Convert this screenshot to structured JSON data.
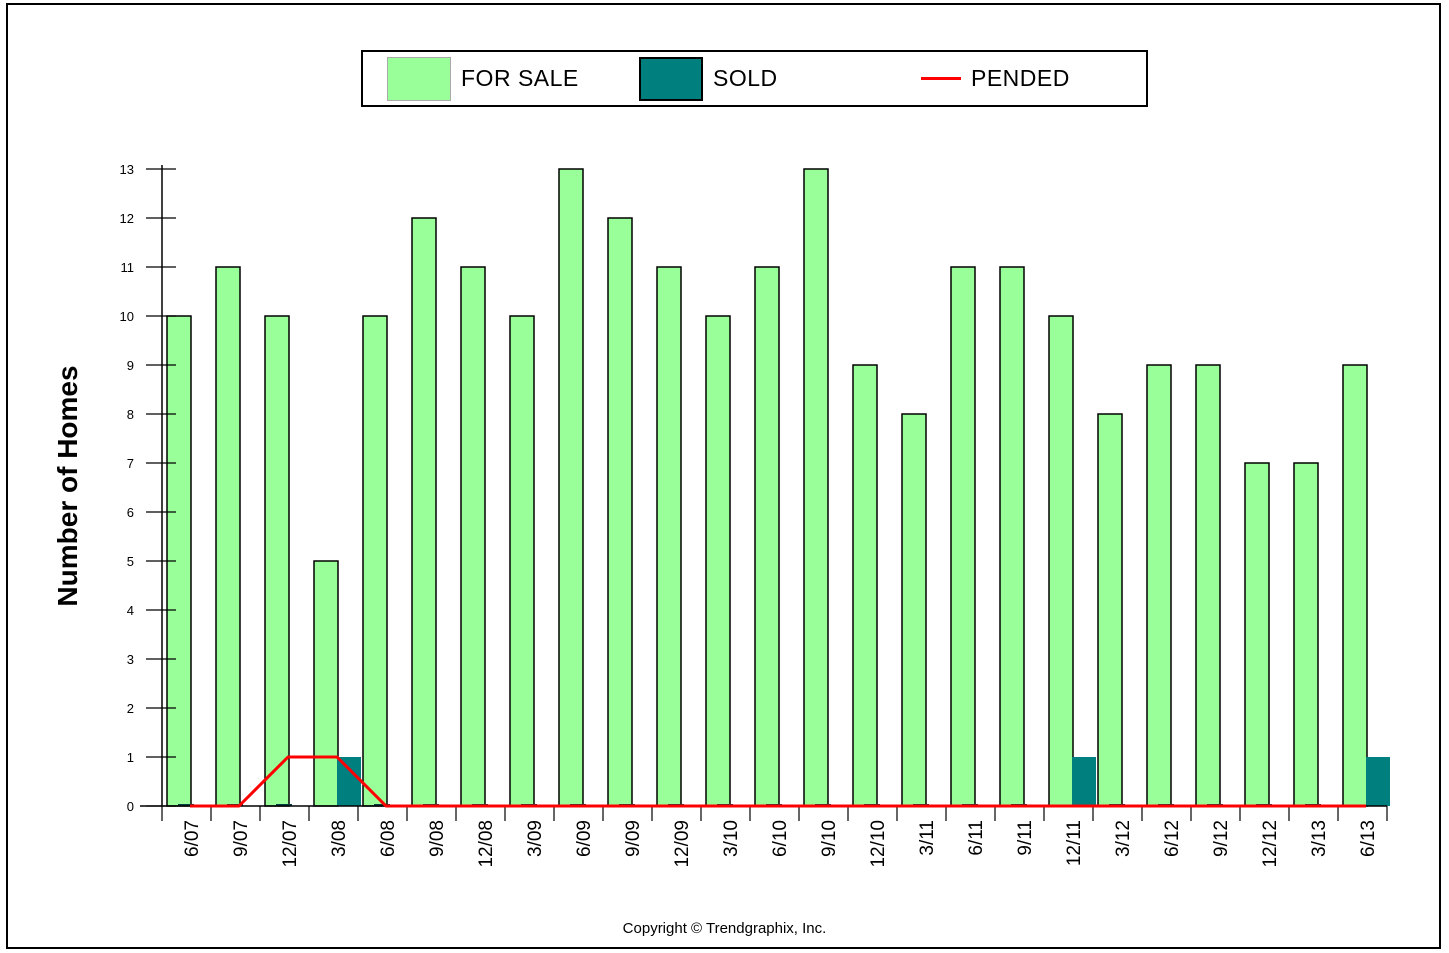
{
  "legend": {
    "for_sale_label": "FOR SALE",
    "sold_label": "SOLD",
    "pended_label": "PENDED"
  },
  "copyright": "Copyright © Trendgraphix, Inc.",
  "colors": {
    "for_sale": "#99ff99",
    "sold": "#007f7f",
    "pended": "#ff0000"
  },
  "chart_data": {
    "type": "bar",
    "ylabel": "Number of Homes",
    "xlabel": "",
    "ylim": [
      0,
      13
    ],
    "yticks": [
      0,
      1,
      2,
      3,
      4,
      5,
      6,
      7,
      8,
      9,
      10,
      11,
      12,
      13
    ],
    "categories": [
      "6/07",
      "9/07",
      "12/07",
      "3/08",
      "6/08",
      "9/08",
      "12/08",
      "3/09",
      "6/09",
      "9/09",
      "12/09",
      "3/10",
      "6/10",
      "9/10",
      "12/10",
      "3/11",
      "6/11",
      "9/11",
      "12/11",
      "3/12",
      "6/12",
      "9/12",
      "12/12",
      "3/13",
      "6/13"
    ],
    "series": [
      {
        "name": "FOR SALE",
        "type": "bar",
        "values": [
          10,
          11,
          10,
          5,
          10,
          12,
          11,
          10,
          13,
          12,
          11,
          10,
          11,
          13,
          9,
          8,
          11,
          11,
          10,
          8,
          9,
          9,
          7,
          7,
          9
        ]
      },
      {
        "name": "SOLD",
        "type": "bar",
        "values": [
          0,
          0,
          0,
          1,
          0,
          0,
          0,
          0,
          0,
          0,
          0,
          0,
          0,
          0,
          0,
          0,
          0,
          0,
          1,
          0,
          0,
          0,
          0,
          0,
          1
        ]
      },
      {
        "name": "PENDED",
        "type": "line",
        "values": [
          0,
          0,
          1,
          1,
          0,
          0,
          0,
          0,
          0,
          0,
          0,
          0,
          0,
          0,
          0,
          0,
          0,
          0,
          0,
          0,
          0,
          0,
          0,
          0,
          0
        ]
      }
    ],
    "grid": false,
    "legend_position": "top-center"
  }
}
